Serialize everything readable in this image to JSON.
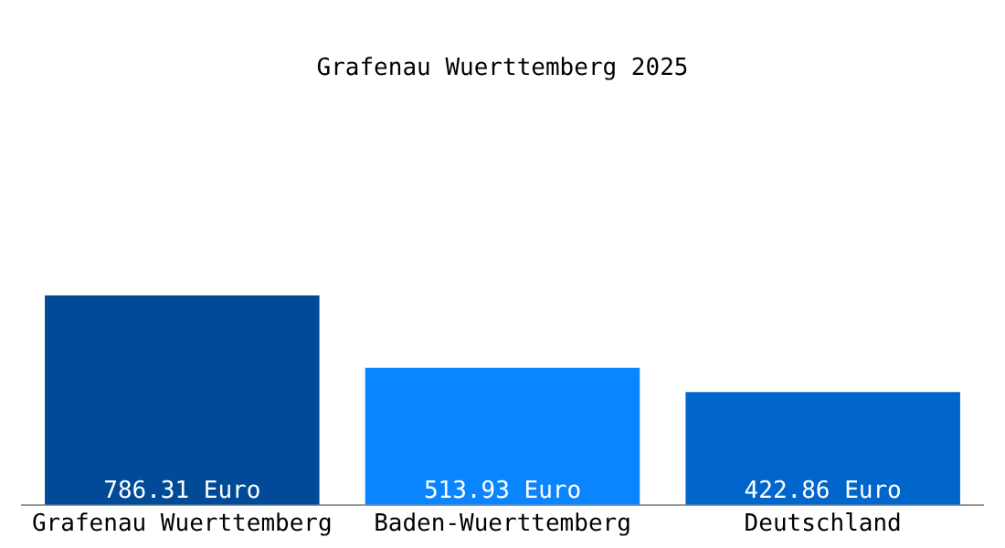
{
  "chart_data": {
    "type": "bar",
    "title": "Grafenau Wuerttemberg 2025",
    "categories": [
      "Grafenau Wuerttemberg",
      "Baden-Wuerttemberg",
      "Deutschland"
    ],
    "values": [
      786.31,
      513.93,
      422.86
    ],
    "colors": [
      "#004a97",
      "#0a84ff",
      "#0066cc"
    ],
    "value_labels": [
      "786.31 Euro",
      "513.93 Euro",
      "422.86 Euro"
    ],
    "grid": false,
    "legend": false
  }
}
